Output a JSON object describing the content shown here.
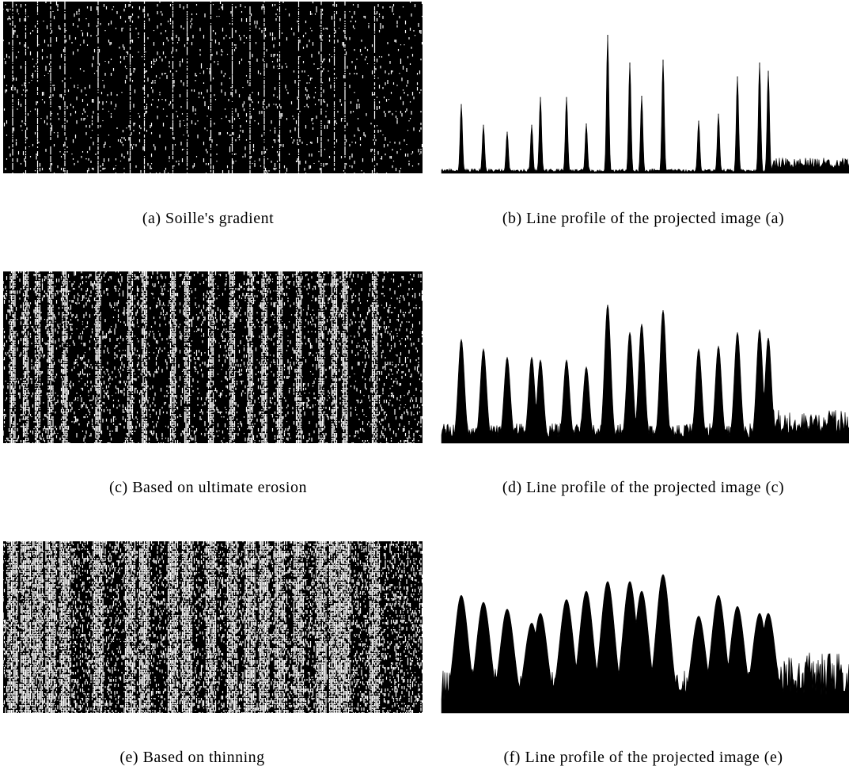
{
  "figure": {
    "panels": [
      {
        "caption": "(a) Soille's gradient"
      },
      {
        "caption": "(b) Line profile of the projected image (a)"
      },
      {
        "caption": "(c) Based on ultimate erosion"
      },
      {
        "caption": "(d) Line profile of the projected image (c)"
      },
      {
        "caption": "(e) Based on thinning"
      },
      {
        "caption": "(f) Line profile of the projected image (e)"
      }
    ]
  }
}
